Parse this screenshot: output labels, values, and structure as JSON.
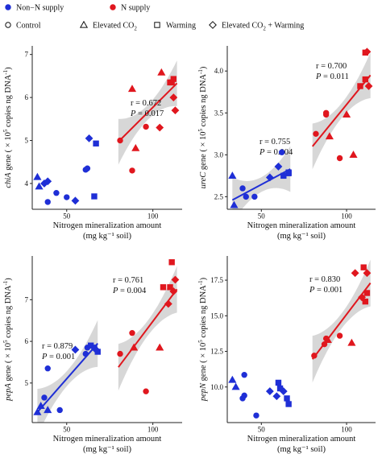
{
  "legend": {
    "supply": [
      {
        "label": "Non−N supply",
        "color": "#1f2fd6"
      },
      {
        "label": "N supply",
        "color": "#e0171e"
      }
    ],
    "treatments": [
      {
        "label": "Control",
        "shape": "circle"
      },
      {
        "label": "Elevated CO",
        "sub": "2",
        "shape": "triangle"
      },
      {
        "label": "Warming",
        "shape": "square"
      },
      {
        "label": "Elevated CO",
        "sub": "2",
        "tail": " + Warming",
        "shape": "diamond"
      }
    ]
  },
  "colors": {
    "non_n": "#1f2fd6",
    "n": "#e0171e",
    "ci_band": "#c9c9c9"
  },
  "chart_data": [
    {
      "id": "chiA",
      "type": "scatter",
      "ylabel_italic": "chiA",
      "ylabel_rest": " gene ( × 10",
      "ylabel_sup": "5",
      "ylabel_tail": " copies ng DNA",
      "ylabel_sup2": "-1",
      "ylabel_close": ")",
      "xlabel": "Nitrogen mineralization amount",
      "xlabel2": "(mg kg⁻¹ soil)",
      "xlim": [
        30,
        117
      ],
      "ylim": [
        3.4,
        7.2
      ],
      "xticks": [
        50,
        100
      ],
      "yticks": [
        4,
        5,
        6,
        7
      ],
      "stats": [
        {
          "r": "r = 0.672",
          "p_label": "P",
          "p_value": " = 0.017"
        }
      ],
      "points": [
        {
          "x": 33,
          "y": 4.15,
          "g": "non_n",
          "s": "triangle"
        },
        {
          "x": 34,
          "y": 3.93,
          "g": "non_n",
          "s": "triangle"
        },
        {
          "x": 37,
          "y": 4.0,
          "g": "non_n",
          "s": "diamond"
        },
        {
          "x": 39,
          "y": 4.05,
          "g": "non_n",
          "s": "diamond"
        },
        {
          "x": 39,
          "y": 3.57,
          "g": "non_n",
          "s": "circle"
        },
        {
          "x": 44,
          "y": 3.78,
          "g": "non_n",
          "s": "circle"
        },
        {
          "x": 50,
          "y": 3.68,
          "g": "non_n",
          "s": "circle"
        },
        {
          "x": 55,
          "y": 3.6,
          "g": "non_n",
          "s": "diamond"
        },
        {
          "x": 61,
          "y": 4.32,
          "g": "non_n",
          "s": "circle"
        },
        {
          "x": 62,
          "y": 4.35,
          "g": "non_n",
          "s": "circle"
        },
        {
          "x": 63,
          "y": 5.05,
          "g": "non_n",
          "s": "diamond"
        },
        {
          "x": 66,
          "y": 3.7,
          "g": "non_n",
          "s": "square"
        },
        {
          "x": 67,
          "y": 4.93,
          "g": "non_n",
          "s": "square"
        },
        {
          "x": 81,
          "y": 5.0,
          "g": "n",
          "s": "circle"
        },
        {
          "x": 88,
          "y": 4.3,
          "g": "n",
          "s": "circle"
        },
        {
          "x": 88,
          "y": 6.2,
          "g": "n",
          "s": "triangle"
        },
        {
          "x": 90,
          "y": 4.82,
          "g": "n",
          "s": "triangle"
        },
        {
          "x": 96,
          "y": 5.32,
          "g": "n",
          "s": "circle"
        },
        {
          "x": 104,
          "y": 5.3,
          "g": "n",
          "s": "diamond"
        },
        {
          "x": 105,
          "y": 6.58,
          "g": "n",
          "s": "triangle"
        },
        {
          "x": 110,
          "y": 6.35,
          "g": "n",
          "s": "square"
        },
        {
          "x": 111,
          "y": 6.35,
          "g": "n",
          "s": "square"
        },
        {
          "x": 112,
          "y": 6.43,
          "g": "n",
          "s": "square"
        },
        {
          "x": 112,
          "y": 6.0,
          "g": "n",
          "s": "diamond"
        },
        {
          "x": 113,
          "y": 5.7,
          "g": "n",
          "s": "diamond"
        }
      ],
      "fits": [
        {
          "g": "n",
          "x": [
            80,
            114
          ],
          "y": [
            4.97,
            6.33
          ]
        }
      ]
    },
    {
      "id": "ureC",
      "type": "scatter",
      "ylabel_italic": "ureC",
      "ylabel_rest": " gene ( × 10",
      "ylabel_sup": "5",
      "ylabel_tail": " copies ng DNA",
      "ylabel_sup2": "-1",
      "ylabel_close": ")",
      "xlabel": "Nitrogen mineralization amount",
      "xlabel2": "(mg kg⁻¹ soil)",
      "xlim": [
        30,
        117
      ],
      "ylim": [
        2.35,
        4.3
      ],
      "xticks": [
        50,
        100
      ],
      "yticks": [
        2.5,
        3.0,
        3.5,
        4.0
      ],
      "stats": [
        {
          "r": "r = 0.755",
          "p_label": "P",
          "p_value": " = 0.004"
        },
        {
          "r": "r = 0.700",
          "p_label": "P",
          "p_value": " = 0.011"
        }
      ],
      "points": [
        {
          "x": 33,
          "y": 2.75,
          "g": "non_n",
          "s": "triangle"
        },
        {
          "x": 34,
          "y": 2.4,
          "g": "non_n",
          "s": "triangle"
        },
        {
          "x": 39,
          "y": 2.6,
          "g": "non_n",
          "s": "circle"
        },
        {
          "x": 41,
          "y": 2.5,
          "g": "non_n",
          "s": "circle"
        },
        {
          "x": 46,
          "y": 2.5,
          "g": "non_n",
          "s": "circle"
        },
        {
          "x": 55,
          "y": 2.73,
          "g": "non_n",
          "s": "diamond"
        },
        {
          "x": 60,
          "y": 2.86,
          "g": "non_n",
          "s": "diamond"
        },
        {
          "x": 62,
          "y": 3.03,
          "g": "non_n",
          "s": "circle"
        },
        {
          "x": 63,
          "y": 2.75,
          "g": "non_n",
          "s": "square"
        },
        {
          "x": 66,
          "y": 2.79,
          "g": "non_n",
          "s": "square"
        },
        {
          "x": 66,
          "y": 2.78,
          "g": "non_n",
          "s": "square"
        },
        {
          "x": 82,
          "y": 3.25,
          "g": "n",
          "s": "circle"
        },
        {
          "x": 88,
          "y": 3.48,
          "g": "n",
          "s": "circle"
        },
        {
          "x": 88,
          "y": 3.5,
          "g": "n",
          "s": "circle"
        },
        {
          "x": 90,
          "y": 3.22,
          "g": "n",
          "s": "triangle"
        },
        {
          "x": 96,
          "y": 2.96,
          "g": "n",
          "s": "circle"
        },
        {
          "x": 100,
          "y": 3.48,
          "g": "n",
          "s": "triangle"
        },
        {
          "x": 104,
          "y": 3.0,
          "g": "n",
          "s": "triangle"
        },
        {
          "x": 108,
          "y": 3.82,
          "g": "n",
          "s": "square"
        },
        {
          "x": 111,
          "y": 3.9,
          "g": "n",
          "s": "square"
        },
        {
          "x": 111,
          "y": 4.22,
          "g": "n",
          "s": "square"
        },
        {
          "x": 112,
          "y": 4.23,
          "g": "n",
          "s": "diamond"
        },
        {
          "x": 113,
          "y": 3.82,
          "g": "n",
          "s": "diamond"
        }
      ],
      "fits": [
        {
          "g": "non_n",
          "x": [
            33,
            67
          ],
          "y": [
            2.46,
            2.83
          ]
        },
        {
          "g": "n",
          "x": [
            80,
            114
          ],
          "y": [
            3.1,
            3.95
          ]
        }
      ]
    },
    {
      "id": "pepA",
      "type": "scatter",
      "ylabel_italic": "pepA",
      "ylabel_rest": " gene ( × 10",
      "ylabel_sup": "5",
      "ylabel_tail": " copies ng DNA",
      "ylabel_sup2": "-1",
      "ylabel_close": ")",
      "xlabel": "Nitrogen mineralization amount",
      "xlabel2": "(mg kg⁻¹ soil)",
      "xlim": [
        30,
        117
      ],
      "ylim": [
        4.05,
        8.05
      ],
      "xticks": [
        50,
        100
      ],
      "yticks": [
        5,
        6,
        7
      ],
      "stats": [
        {
          "r": "r = 0.879",
          "p_label": "P",
          "p_value": " = 0.001"
        },
        {
          "r": "r = 0.761",
          "p_label": "P",
          "p_value": " = 0.004"
        }
      ],
      "points": [
        {
          "x": 33,
          "y": 4.3,
          "g": "non_n",
          "s": "triangle"
        },
        {
          "x": 35,
          "y": 4.45,
          "g": "non_n",
          "s": "triangle"
        },
        {
          "x": 37,
          "y": 4.65,
          "g": "non_n",
          "s": "circle"
        },
        {
          "x": 39,
          "y": 4.35,
          "g": "non_n",
          "s": "triangle"
        },
        {
          "x": 39,
          "y": 5.35,
          "g": "non_n",
          "s": "circle"
        },
        {
          "x": 46,
          "y": 4.35,
          "g": "non_n",
          "s": "circle"
        },
        {
          "x": 55,
          "y": 5.8,
          "g": "non_n",
          "s": "diamond"
        },
        {
          "x": 61,
          "y": 5.7,
          "g": "non_n",
          "s": "circle"
        },
        {
          "x": 62,
          "y": 5.85,
          "g": "non_n",
          "s": "circle"
        },
        {
          "x": 64,
          "y": 5.9,
          "g": "non_n",
          "s": "square"
        },
        {
          "x": 66,
          "y": 5.85,
          "g": "non_n",
          "s": "square"
        },
        {
          "x": 67,
          "y": 5.8,
          "g": "non_n",
          "s": "diamond"
        },
        {
          "x": 68,
          "y": 5.75,
          "g": "non_n",
          "s": "square"
        },
        {
          "x": 81,
          "y": 5.7,
          "g": "n",
          "s": "circle"
        },
        {
          "x": 88,
          "y": 6.2,
          "g": "n",
          "s": "circle"
        },
        {
          "x": 89,
          "y": 5.85,
          "g": "n",
          "s": "triangle"
        },
        {
          "x": 96,
          "y": 4.8,
          "g": "n",
          "s": "circle"
        },
        {
          "x": 104,
          "y": 5.85,
          "g": "n",
          "s": "triangle"
        },
        {
          "x": 106,
          "y": 7.3,
          "g": "n",
          "s": "square"
        },
        {
          "x": 109,
          "y": 6.9,
          "g": "n",
          "s": "diamond"
        },
        {
          "x": 110,
          "y": 7.3,
          "g": "n",
          "s": "square"
        },
        {
          "x": 111,
          "y": 7.9,
          "g": "n",
          "s": "square"
        },
        {
          "x": 112,
          "y": 7.2,
          "g": "n",
          "s": "diamond"
        },
        {
          "x": 113,
          "y": 7.48,
          "g": "n",
          "s": "diamond"
        }
      ],
      "fits": [
        {
          "g": "non_n",
          "x": [
            33,
            68
          ],
          "y": [
            4.3,
            5.95
          ]
        },
        {
          "g": "n",
          "x": [
            80,
            114
          ],
          "y": [
            5.38,
            7.25
          ]
        }
      ]
    },
    {
      "id": "pepN",
      "type": "scatter",
      "ylabel_italic": "pepN",
      "ylabel_rest": " gene ( × 10",
      "ylabel_sup": "5",
      "ylabel_tail": " copies ng DNA",
      "ylabel_sup2": "-1",
      "ylabel_close": ")",
      "xlabel": "Nitrogen mineralization amount",
      "xlabel2": "(mg kg⁻¹ soil)",
      "xlim": [
        30,
        117
      ],
      "ylim": [
        7.5,
        19.2
      ],
      "xticks": [
        50,
        100
      ],
      "yticks": [
        10.0,
        12.5,
        15.0,
        17.5
      ],
      "stats": [
        {
          "r": "r = 0.830",
          "p_label": "P",
          "p_value": " = 0.001"
        }
      ],
      "points": [
        {
          "x": 33,
          "y": 10.5,
          "g": "non_n",
          "s": "triangle"
        },
        {
          "x": 35,
          "y": 10.0,
          "g": "non_n",
          "s": "triangle"
        },
        {
          "x": 39,
          "y": 9.2,
          "g": "non_n",
          "s": "circle"
        },
        {
          "x": 40,
          "y": 9.4,
          "g": "non_n",
          "s": "circle"
        },
        {
          "x": 40,
          "y": 10.85,
          "g": "non_n",
          "s": "circle"
        },
        {
          "x": 47,
          "y": 8.0,
          "g": "non_n",
          "s": "circle"
        },
        {
          "x": 55,
          "y": 9.7,
          "g": "non_n",
          "s": "diamond"
        },
        {
          "x": 59,
          "y": 9.35,
          "g": "non_n",
          "s": "diamond"
        },
        {
          "x": 60,
          "y": 10.3,
          "g": "non_n",
          "s": "square"
        },
        {
          "x": 61,
          "y": 9.9,
          "g": "non_n",
          "s": "square"
        },
        {
          "x": 63,
          "y": 9.7,
          "g": "non_n",
          "s": "diamond"
        },
        {
          "x": 65,
          "y": 9.2,
          "g": "non_n",
          "s": "square"
        },
        {
          "x": 66,
          "y": 8.8,
          "g": "non_n",
          "s": "square"
        },
        {
          "x": 81,
          "y": 12.2,
          "g": "n",
          "s": "circle"
        },
        {
          "x": 87,
          "y": 13.0,
          "g": "n",
          "s": "circle"
        },
        {
          "x": 88,
          "y": 13.4,
          "g": "n",
          "s": "circle"
        },
        {
          "x": 89,
          "y": 13.3,
          "g": "n",
          "s": "triangle"
        },
        {
          "x": 96,
          "y": 13.6,
          "g": "n",
          "s": "circle"
        },
        {
          "x": 103,
          "y": 13.1,
          "g": "n",
          "s": "triangle"
        },
        {
          "x": 105,
          "y": 18.0,
          "g": "n",
          "s": "diamond"
        },
        {
          "x": 109,
          "y": 16.3,
          "g": "n",
          "s": "diamond"
        },
        {
          "x": 110,
          "y": 18.4,
          "g": "n",
          "s": "square"
        },
        {
          "x": 111,
          "y": 16.0,
          "g": "n",
          "s": "square"
        },
        {
          "x": 112,
          "y": 16.6,
          "g": "n",
          "s": "square"
        },
        {
          "x": 112,
          "y": 18.0,
          "g": "n",
          "s": "diamond"
        }
      ],
      "fits": [
        {
          "g": "n",
          "x": [
            80,
            114
          ],
          "y": [
            11.95,
            17.3
          ]
        }
      ]
    }
  ]
}
